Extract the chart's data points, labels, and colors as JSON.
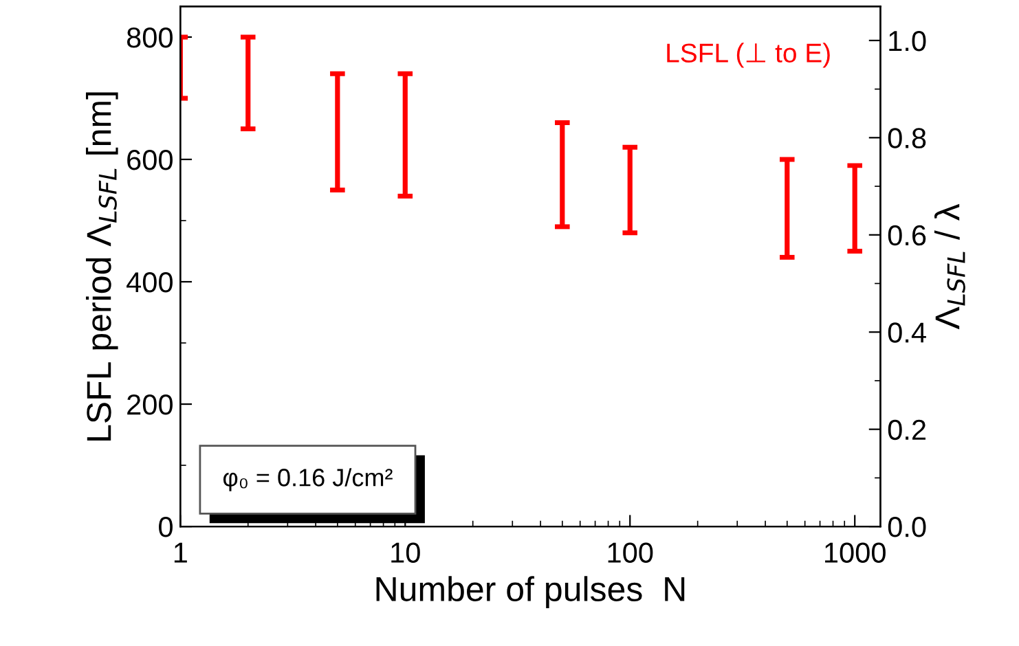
{
  "chart_data": {
    "type": "bar",
    "xlabel": "Number of pulses  N",
    "ylabel": "LSFL period Λ$_{LSFL}$ [nm]",
    "y2label": "Λ$_{LSFL}$ / λ",
    "x": [
      1,
      2,
      5,
      10,
      50,
      100,
      500,
      1000
    ],
    "series": [
      {
        "name": "LSFL (⊥ to E)",
        "color": "#ff0000",
        "base": [
          700,
          650,
          550,
          540,
          490,
          480,
          440,
          450
        ],
        "values": [
          100,
          150,
          190,
          200,
          170,
          140,
          160,
          140
        ]
      }
    ],
    "log": "x",
    "xlim": [
      1,
      1300
    ],
    "xticks": [
      1,
      10,
      100,
      1000
    ],
    "ylim": [
      0,
      850
    ],
    "yticks": [
      0,
      200,
      400,
      600,
      800
    ],
    "y2lim": [
      0,
      1.07
    ],
    "y2ticks": [
      {
        "value": 0,
        "label": "0.0"
      },
      0.2,
      0.4,
      0.6,
      0.8,
      {
        "value": 1,
        "label": "1.0"
      }
    ],
    "annotations": [
      "φ₀ = 0.16 J/cm²"
    ],
    "grid": false,
    "legend": false
  }
}
